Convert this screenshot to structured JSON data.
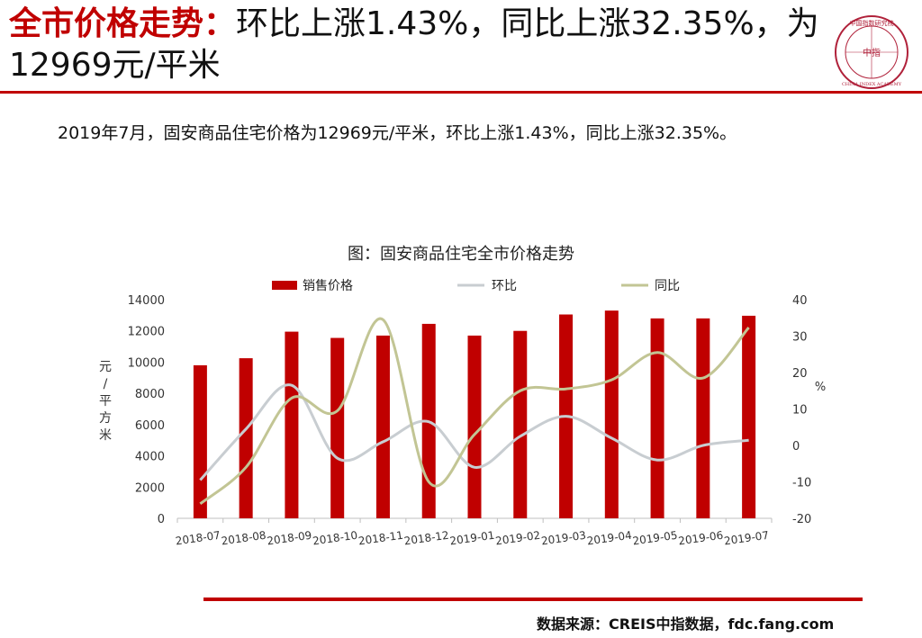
{
  "header": {
    "title_lead": "全市价格走势：",
    "title_rest": "环比上涨1.43%，同比上涨32.35%，为12969元/平米",
    "logo_text_top": "中国指数研究院",
    "logo_text_center": "中指",
    "logo_text_bottom": "CHINA INDEX ACADEMY"
  },
  "summary": "2019年7月，固安商品住宅价格为12969元/平米，环比上涨1.43%，同比上涨32.35%。",
  "colors": {
    "accent": "#c00000",
    "bar": "#c00000",
    "mom": "#c8cdd1",
    "yoy": "#c2c594"
  },
  "chart_data": {
    "type": "bar+line",
    "title": "图：固安商品住宅全市价格走势",
    "categories": [
      "2018-07",
      "2018-08",
      "2018-09",
      "2018-10",
      "2018-11",
      "2018-12",
      "2019-01",
      "2019-02",
      "2019-03",
      "2019-04",
      "2019-05",
      "2019-06",
      "2019-07"
    ],
    "series": [
      {
        "name": "销售价格",
        "type": "bar",
        "axis": "left",
        "values": [
          9800,
          10250,
          11950,
          11550,
          11700,
          12450,
          11700,
          12000,
          13050,
          13300,
          12800,
          12800,
          12969
        ]
      },
      {
        "name": "环比",
        "type": "line",
        "axis": "right",
        "values": [
          -9.5,
          4.5,
          16.5,
          -3.5,
          1.0,
          6.5,
          -6.0,
          2.5,
          8.0,
          2.0,
          -4.0,
          0.0,
          1.43
        ]
      },
      {
        "name": "同比",
        "type": "line",
        "axis": "right",
        "values": [
          -16.0,
          -6.0,
          13.0,
          9.5,
          34.5,
          -10.0,
          3.0,
          15.0,
          15.5,
          18.0,
          25.5,
          18.5,
          32.35
        ]
      }
    ],
    "ylabel_left": "元/平方米",
    "ylabel_right": "%",
    "ylim_left": [
      0,
      14000
    ],
    "yticks_left": [
      0,
      2000,
      4000,
      6000,
      8000,
      10000,
      12000,
      14000
    ],
    "ylim_right": [
      -20,
      40
    ],
    "yticks_right": [
      -20,
      -10,
      0,
      10,
      20,
      30,
      40
    ],
    "legend": [
      "销售价格",
      "环比",
      "同比"
    ],
    "legend_position": "top",
    "grid": false
  },
  "source": "数据来源：CREIS中指数据，fdc.fang.com"
}
